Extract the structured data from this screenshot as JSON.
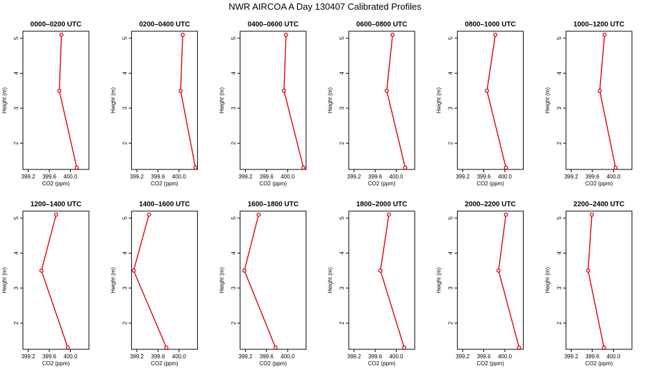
{
  "title": "NWR AIRCOA A  Day 130407  Calibrated Profiles",
  "colors": {
    "series": "#dd0000",
    "axis": "#000000",
    "background": "#ffffff"
  },
  "chart_data": [
    {
      "type": "line",
      "title": "0000–0200 UTC",
      "xlabel": "CO2 (ppm)",
      "ylabel": "Height (m)",
      "xlim": [
        399.1,
        400.35
      ],
      "ylim": [
        1.25,
        5.2
      ],
      "x_ticks": [
        "399.2",
        "399.6",
        "400.0"
      ],
      "y_ticks": [
        "2",
        "3",
        "4",
        "5"
      ],
      "points": [
        {
          "x": 399.83,
          "y": 5.1
        },
        {
          "x": 399.79,
          "y": 3.5
        },
        {
          "x": 400.12,
          "y": 1.3
        }
      ]
    },
    {
      "type": "line",
      "title": "0200–0400 UTC",
      "xlabel": "CO2 (ppm)",
      "ylabel": "Height (m)",
      "xlim": [
        399.1,
        400.35
      ],
      "ylim": [
        1.25,
        5.2
      ],
      "x_ticks": [
        "399.2",
        "399.6",
        "400.0"
      ],
      "y_ticks": [
        "2",
        "3",
        "4",
        "5"
      ],
      "points": [
        {
          "x": 400.07,
          "y": 5.1
        },
        {
          "x": 400.03,
          "y": 3.5
        },
        {
          "x": 400.31,
          "y": 1.3
        }
      ]
    },
    {
      "type": "line",
      "title": "0400–0600 UTC",
      "xlabel": "CO2 (ppm)",
      "ylabel": "Height (m)",
      "xlim": [
        399.1,
        400.35
      ],
      "ylim": [
        1.25,
        5.2
      ],
      "x_ticks": [
        "399.2",
        "399.6",
        "400.0"
      ],
      "y_ticks": [
        "2",
        "3",
        "4",
        "5"
      ],
      "points": [
        {
          "x": 399.97,
          "y": 5.1
        },
        {
          "x": 399.93,
          "y": 3.5
        },
        {
          "x": 400.3,
          "y": 1.3
        }
      ]
    },
    {
      "type": "line",
      "title": "0600–0800 UTC",
      "xlabel": "CO2 (ppm)",
      "ylabel": "Height (m)",
      "xlim": [
        399.1,
        400.35
      ],
      "ylim": [
        1.25,
        5.2
      ],
      "x_ticks": [
        "399.2",
        "399.6",
        "400.0"
      ],
      "y_ticks": [
        "2",
        "3",
        "4",
        "5"
      ],
      "points": [
        {
          "x": 399.93,
          "y": 5.1
        },
        {
          "x": 399.82,
          "y": 3.5
        },
        {
          "x": 400.17,
          "y": 1.3
        }
      ]
    },
    {
      "type": "line",
      "title": "0800–1000 UTC",
      "xlabel": "CO2 (ppm)",
      "ylabel": "Height (m)",
      "xlim": [
        399.1,
        400.35
      ],
      "ylim": [
        1.25,
        5.2
      ],
      "x_ticks": [
        "399.2",
        "399.6",
        "400.0"
      ],
      "y_ticks": [
        "2",
        "3",
        "4",
        "5"
      ],
      "points": [
        {
          "x": 399.82,
          "y": 5.1
        },
        {
          "x": 399.66,
          "y": 3.5
        },
        {
          "x": 400.02,
          "y": 1.3
        }
      ]
    },
    {
      "type": "line",
      "title": "1000–1200 UTC",
      "xlabel": "CO2 (ppm)",
      "ylabel": "Height (m)",
      "xlim": [
        399.1,
        400.35
      ],
      "ylim": [
        1.25,
        5.2
      ],
      "x_ticks": [
        "399.2",
        "399.6",
        "400.0"
      ],
      "y_ticks": [
        "2",
        "3",
        "4",
        "5"
      ],
      "points": [
        {
          "x": 399.83,
          "y": 5.1
        },
        {
          "x": 399.74,
          "y": 3.5
        },
        {
          "x": 400.04,
          "y": 1.3
        }
      ]
    },
    {
      "type": "line",
      "title": "1200–1400 UTC",
      "xlabel": "CO2 (ppm)",
      "ylabel": "Height (m)",
      "xlim": [
        399.1,
        400.35
      ],
      "ylim": [
        1.25,
        5.2
      ],
      "x_ticks": [
        "399.2",
        "399.6",
        "400.0"
      ],
      "y_ticks": [
        "2",
        "3",
        "4",
        "5"
      ],
      "points": [
        {
          "x": 399.73,
          "y": 5.1
        },
        {
          "x": 399.45,
          "y": 3.5
        },
        {
          "x": 399.95,
          "y": 1.3
        }
      ]
    },
    {
      "type": "line",
      "title": "1400–1600 UTC",
      "xlabel": "CO2 (ppm)",
      "ylabel": "Height (m)",
      "xlim": [
        399.1,
        400.35
      ],
      "ylim": [
        1.25,
        5.2
      ],
      "x_ticks": [
        "399.2",
        "399.6",
        "400.0"
      ],
      "y_ticks": [
        "2",
        "3",
        "4",
        "5"
      ],
      "points": [
        {
          "x": 399.43,
          "y": 5.1
        },
        {
          "x": 399.14,
          "y": 3.5
        },
        {
          "x": 399.76,
          "y": 1.3
        }
      ]
    },
    {
      "type": "line",
      "title": "1600–1800 UTC",
      "xlabel": "CO2 (ppm)",
      "ylabel": "Height (m)",
      "xlim": [
        399.1,
        400.35
      ],
      "ylim": [
        1.25,
        5.2
      ],
      "x_ticks": [
        "399.2",
        "399.6",
        "400.0"
      ],
      "y_ticks": [
        "2",
        "3",
        "4",
        "5"
      ],
      "points": [
        {
          "x": 399.45,
          "y": 5.1
        },
        {
          "x": 399.18,
          "y": 3.5
        },
        {
          "x": 399.77,
          "y": 1.3
        }
      ]
    },
    {
      "type": "line",
      "title": "1800–2000 UTC",
      "xlabel": "CO2 (ppm)",
      "ylabel": "Height (m)",
      "xlim": [
        399.1,
        400.35
      ],
      "ylim": [
        1.25,
        5.2
      ],
      "x_ticks": [
        "399.2",
        "399.6",
        "400.0"
      ],
      "y_ticks": [
        "2",
        "3",
        "4",
        "5"
      ],
      "points": [
        {
          "x": 399.86,
          "y": 5.1
        },
        {
          "x": 399.7,
          "y": 3.5
        },
        {
          "x": 400.15,
          "y": 1.3
        }
      ]
    },
    {
      "type": "line",
      "title": "2000–2200 UTC",
      "xlabel": "CO2 (ppm)",
      "ylabel": "Height (m)",
      "xlim": [
        399.1,
        400.35
      ],
      "ylim": [
        1.25,
        5.2
      ],
      "x_ticks": [
        "399.2",
        "399.6",
        "400.0"
      ],
      "y_ticks": [
        "2",
        "3",
        "4",
        "5"
      ],
      "points": [
        {
          "x": 400.02,
          "y": 5.1
        },
        {
          "x": 399.88,
          "y": 3.5
        },
        {
          "x": 400.27,
          "y": 1.3
        }
      ]
    },
    {
      "type": "line",
      "title": "2200–2400 UTC",
      "xlabel": "CO2 (ppm)",
      "ylabel": "Height (m)",
      "xlim": [
        399.1,
        400.35
      ],
      "ylim": [
        1.25,
        5.2
      ],
      "x_ticks": [
        "399.2",
        "399.6",
        "400.0"
      ],
      "y_ticks": [
        "2",
        "3",
        "4",
        "5"
      ],
      "points": [
        {
          "x": 399.59,
          "y": 5.1
        },
        {
          "x": 399.52,
          "y": 3.5
        },
        {
          "x": 399.82,
          "y": 1.3
        }
      ]
    }
  ]
}
